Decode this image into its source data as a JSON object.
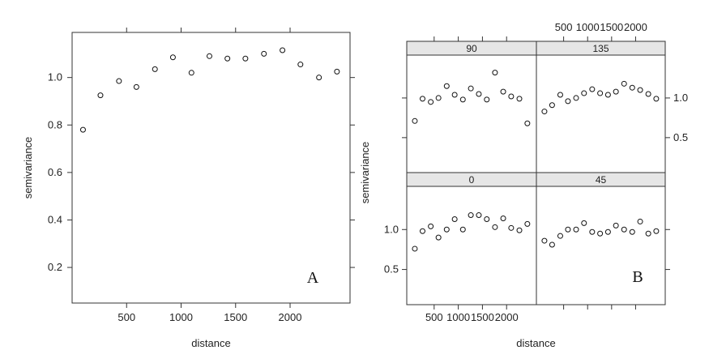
{
  "chart_data": [
    {
      "type": "scatter",
      "panel_label": "A",
      "xlabel": "distance",
      "ylabel": "semivariance",
      "xlim": [
        0,
        2550
      ],
      "ylim": [
        0.05,
        1.19
      ],
      "xticks": [
        500,
        1000,
        1500,
        2000
      ],
      "yticks": [
        0.2,
        0.4,
        0.6,
        0.8,
        1.0
      ],
      "x": [
        100,
        260,
        430,
        590,
        760,
        925,
        1095,
        1260,
        1425,
        1590,
        1760,
        1930,
        2095,
        2265,
        2430
      ],
      "y": [
        0.78,
        0.925,
        0.985,
        0.96,
        1.035,
        1.085,
        1.02,
        1.09,
        1.08,
        1.08,
        1.1,
        1.115,
        1.055,
        1.0,
        1.025
      ]
    },
    {
      "type": "scatter",
      "panel_label": "B",
      "xlabel": "distance",
      "ylabel": "semivariance",
      "xlim": [
        0,
        2550
      ],
      "ylim": [
        0.1,
        1.5
      ],
      "xticks": [
        500,
        1000,
        1500,
        2000
      ],
      "yticks": [
        0.5,
        1.0
      ],
      "panels": [
        {
          "strip": "90",
          "x": [
            100,
            260,
            430,
            590,
            760,
            925,
            1095,
            1260,
            1425,
            1590,
            1760,
            1930,
            2095,
            2265,
            2430
          ],
          "y": [
            0.71,
            0.99,
            0.95,
            1.0,
            1.15,
            1.04,
            0.98,
            1.12,
            1.05,
            0.98,
            1.32,
            1.08,
            1.02,
            0.99,
            0.68
          ]
        },
        {
          "strip": "135",
          "x": [
            100,
            260,
            430,
            590,
            760,
            925,
            1095,
            1260,
            1425,
            1590,
            1760,
            1930,
            2095,
            2265,
            2430
          ],
          "y": [
            0.83,
            0.91,
            1.04,
            0.96,
            1.0,
            1.06,
            1.11,
            1.06,
            1.04,
            1.08,
            1.18,
            1.13,
            1.1,
            1.05,
            0.99
          ]
        },
        {
          "strip": "0",
          "x": [
            100,
            260,
            430,
            590,
            760,
            925,
            1095,
            1260,
            1425,
            1590,
            1760,
            1930,
            2095,
            2265,
            2430
          ],
          "y": [
            0.76,
            0.98,
            1.04,
            0.9,
            1.0,
            1.13,
            1.0,
            1.18,
            1.18,
            1.13,
            1.03,
            1.14,
            1.02,
            0.99,
            1.07
          ]
        },
        {
          "strip": "45",
          "x": [
            100,
            260,
            430,
            590,
            760,
            925,
            1095,
            1260,
            1425,
            1590,
            1760,
            1930,
            2095,
            2265,
            2430
          ],
          "y": [
            0.86,
            0.81,
            0.92,
            1.0,
            1.0,
            1.08,
            0.97,
            0.95,
            0.97,
            1.05,
            1.0,
            0.97,
            1.1,
            0.95,
            0.98
          ]
        }
      ]
    }
  ]
}
